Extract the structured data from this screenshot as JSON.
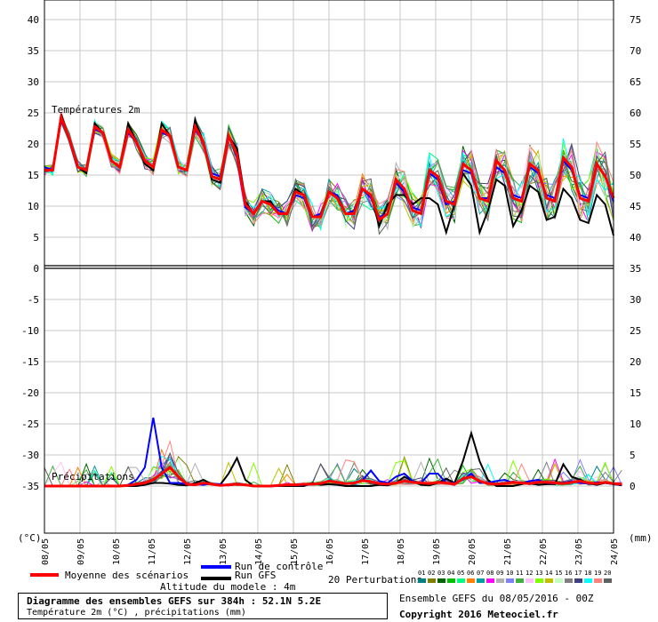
{
  "chart_data": {
    "type": "line",
    "temperature_panel": {
      "label": "Températures 2m",
      "unit": "°C",
      "left_ticks": [
        40,
        35,
        30,
        25,
        20,
        15,
        10,
        5,
        0,
        -5,
        -10,
        -15,
        -20,
        -25,
        -30,
        -35
      ],
      "ylim": [
        -35,
        40
      ],
      "mean": [
        15.5,
        15.5,
        24,
        20.5,
        16,
        15.5,
        22.5,
        21.5,
        17,
        16,
        22,
        20,
        17,
        16,
        22,
        21,
        16,
        15.5,
        22.5,
        20,
        14.5,
        14,
        21,
        18,
        10,
        8.5,
        10.5,
        10,
        8.5,
        8.5,
        12,
        11.5,
        8,
        8,
        12,
        11,
        8.5,
        8.5,
        12.5,
        11.5,
        7.5,
        8.5,
        14,
        12.5,
        9,
        8.5,
        15.5,
        14.5,
        10.5,
        10,
        16.5,
        15.5,
        11,
        10.5,
        17,
        15.5,
        11,
        10.5,
        16.5,
        15.5,
        11,
        10.5,
        17.5,
        16,
        11,
        10.5,
        16.5,
        14.5,
        11
      ],
      "gfs": [
        16,
        15.5,
        24.5,
        20.5,
        16,
        15,
        23,
        21.5,
        17,
        16,
        23,
        20,
        16.5,
        15.5,
        23,
        21,
        16,
        15.5,
        23.5,
        20,
        14,
        13.5,
        21,
        19,
        10.5,
        8.5,
        10.5,
        10.5,
        8.5,
        8.5,
        12.5,
        11.5,
        8,
        8,
        12,
        11,
        8.5,
        9,
        12.5,
        11.5,
        6.5,
        10,
        11.5,
        11.5,
        10,
        11,
        11,
        10,
        5.5,
        10,
        15,
        13,
        5.5,
        9,
        14,
        13,
        6.5,
        9,
        13,
        12,
        7.5,
        8,
        12.5,
        11,
        7.5,
        7,
        11.5,
        10,
        5
      ],
      "control": [
        16,
        15.5,
        23.5,
        20.5,
        16,
        15.5,
        22,
        21.5,
        17,
        16,
        21.5,
        20,
        17,
        16,
        21.5,
        21,
        16,
        15.5,
        22,
        20,
        15,
        14.5,
        21,
        17.5,
        9.5,
        8.5,
        10.5,
        10,
        9,
        8.5,
        11.5,
        11,
        8,
        8.5,
        12,
        11.5,
        8.5,
        9,
        12.5,
        11,
        8,
        8.5,
        13.5,
        12,
        9.5,
        9,
        15,
        14,
        10,
        10.5,
        15.5,
        15,
        11,
        11,
        16,
        15,
        11.5,
        11,
        16,
        15,
        11.5,
        11,
        17,
        15.5,
        11.5,
        11,
        16.5,
        14.5,
        10.5
      ]
    },
    "precipitation_panel": {
      "label": "Précipitations",
      "unit": "mm",
      "right_ticks": [
        75,
        70,
        65,
        60,
        55,
        50,
        45,
        40,
        35,
        30,
        25,
        20,
        15,
        10,
        5,
        0
      ],
      "mean": [
        0,
        0,
        0,
        0,
        0,
        0,
        0,
        0,
        0,
        0,
        0.1,
        0.3,
        0.5,
        1,
        2,
        3,
        1.5,
        0.3,
        0.2,
        0.5,
        0.3,
        0.1,
        0.2,
        0.3,
        0.2,
        0,
        0,
        0,
        0.1,
        0.2,
        0.2,
        0.3,
        0.3,
        0.4,
        0.8,
        0.6,
        0.4,
        0.5,
        0.9,
        0.7,
        0.4,
        0.3,
        0.5,
        0.8,
        0.6,
        0.5,
        0.4,
        0.6,
        0.5,
        0.3,
        1.2,
        1.5,
        0.8,
        0.4,
        0.3,
        0.4,
        0.6,
        0.5,
        0.4,
        0.6,
        0.6,
        0.5,
        0.4,
        0.6,
        0.8,
        0.5,
        0.4,
        0.6,
        0.4,
        0.3
      ],
      "gfs": [
        0,
        0,
        0,
        0,
        0,
        0,
        0,
        0,
        0,
        0,
        0,
        0,
        0.2,
        0.5,
        0.5,
        0.4,
        0.2,
        0.1,
        0.5,
        1,
        0.3,
        0.2,
        2,
        4.5,
        1,
        0,
        0,
        0,
        0,
        0,
        0,
        0,
        0.5,
        0.2,
        0.3,
        0.2,
        0,
        0,
        0,
        0,
        0.2,
        0.1,
        0.5,
        1.5,
        0.8,
        0.2,
        0.1,
        0.5,
        1.2,
        0.5,
        4,
        8.5,
        4,
        1,
        0,
        0,
        0,
        0.3,
        0.5,
        0.2,
        0.3,
        0.3,
        3.5,
        1.5,
        1,
        0.5,
        0.2,
        0.5,
        0.3,
        0.1
      ],
      "control": [
        0,
        0,
        0,
        0,
        0,
        0,
        0,
        0,
        0,
        0,
        0.2,
        1,
        3,
        11,
        3,
        0.5,
        0.5,
        0.3,
        0.3,
        0.2,
        0.4,
        0.3,
        0.1,
        0.3,
        0.2,
        0,
        0,
        0,
        0.1,
        0.2,
        0.1,
        0.2,
        0.3,
        0.4,
        0.8,
        0.6,
        0.4,
        0.5,
        0.9,
        2.5,
        0.8,
        0.5,
        1.5,
        2,
        0.8,
        0.5,
        2,
        2,
        0.5,
        0.5,
        1,
        2,
        0.5,
        0.5,
        0.8,
        1,
        0.5,
        0.5,
        0.8,
        1,
        0.5,
        0.4,
        0.5,
        0.8,
        0.5,
        0.4,
        0.6,
        0.5,
        0.3,
        0.2
      ]
    },
    "x_ticks": [
      "08/05",
      "09/05",
      "10/05",
      "11/05",
      "12/05",
      "13/05",
      "14/05",
      "15/05",
      "16/05",
      "17/05",
      "18/05",
      "19/05",
      "20/05",
      "21/05",
      "22/05",
      "23/05",
      "24/05"
    ],
    "left_unit": "(°C)",
    "right_unit": "(mm)",
    "grid": true,
    "perturbation_colors": [
      "#008080",
      "#808000",
      "#006400",
      "#00c000",
      "#00ff80",
      "#ff8000",
      "#00a0a0",
      "#ff00ff",
      "#b0b0b0",
      "#8080ff",
      "#40b040",
      "#ffc0ff",
      "#80ff00",
      "#c0c000",
      "#c0ffc0",
      "#808080",
      "#404080",
      "#00ffff",
      "#ff8080",
      "#606060"
    ]
  },
  "legend": {
    "control_label": "Run de contrôle",
    "gfs_label": "Run GFS",
    "mean_label": "Moyenne des scénarios",
    "perturbations_label": "20 Perturbations",
    "perturbation_numbers": [
      "01",
      "02",
      "03",
      "04",
      "05",
      "06",
      "07",
      "08",
      "09",
      "10",
      "11",
      "12",
      "13",
      "14",
      "15",
      "16",
      "17",
      "18",
      "19",
      "20"
    ],
    "altitude": "Altitude du modele : 4m",
    "control_color": "#0000ff",
    "gfs_color": "#000000",
    "mean_color": "#ff0000"
  },
  "info": {
    "title": "Diagramme des ensembles GEFS sur 384h : 52.1N 5.2E",
    "subtitle": "Température 2m (°C) , précipitations (mm)",
    "ensemble": "Ensemble GEFS du 08/05/2016 - 00Z",
    "copyright": "Copyright 2016 Meteociel.fr"
  }
}
